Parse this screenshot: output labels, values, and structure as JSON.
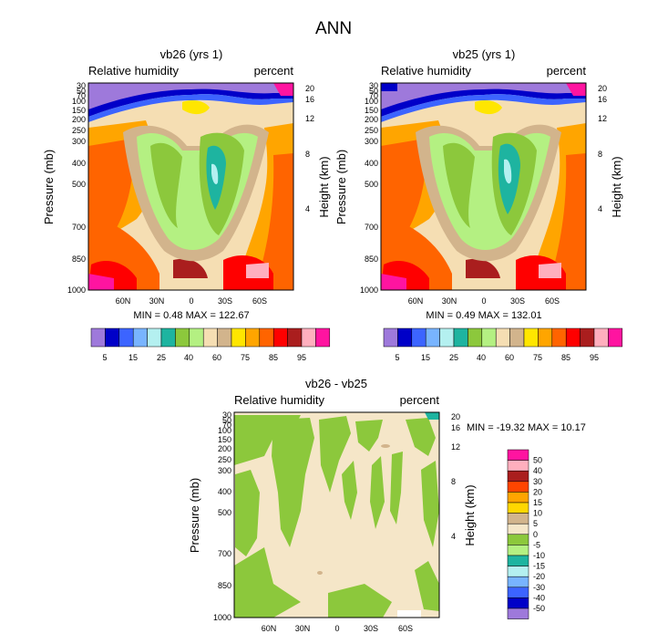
{
  "page": {
    "title": "ANN"
  },
  "chart_data": [
    {
      "type": "heatmap",
      "title": "vb26 (yrs 1)",
      "left_label": "Relative humidity",
      "right_label": "percent",
      "ylabel": "Pressure (mb)",
      "ylabel_right": "Height (km)",
      "x_ticks": [
        "60N",
        "30N",
        "0",
        "30S",
        "60S"
      ],
      "y_ticks": [
        "30",
        "50",
        "70",
        "100",
        "150",
        "200",
        "250",
        "300",
        "400",
        "500",
        "700",
        "850",
        "1000"
      ],
      "y_ticks_right": [
        "20",
        "16",
        "12",
        "8",
        "4"
      ],
      "min_max": "MIN =   0.48  MAX = 122.67",
      "colorbar_labels": [
        "5",
        "15",
        "25",
        "40",
        "60",
        "75",
        "85",
        "95"
      ],
      "colors": [
        "#9e79db",
        "#0000c8",
        "#3c64ff",
        "#78b4ff",
        "#b4f0f0",
        "#1eb4a0",
        "#8cc83c",
        "#b4f082",
        "#f5deb3",
        "#d2b48c",
        "#ffe600",
        "#ffa500",
        "#ff6400",
        "#ff0000",
        "#aa1e1e",
        "#ffafbe",
        "#ff14a0"
      ]
    },
    {
      "type": "heatmap",
      "title": "vb25 (yrs 1)",
      "left_label": "Relative humidity",
      "right_label": "percent",
      "ylabel": "Pressure (mb)",
      "ylabel_right": "Height (km)",
      "x_ticks": [
        "60N",
        "30N",
        "0",
        "30S",
        "60S"
      ],
      "y_ticks": [
        "30",
        "50",
        "70",
        "100",
        "150",
        "200",
        "250",
        "300",
        "400",
        "500",
        "700",
        "850",
        "1000"
      ],
      "y_ticks_right": [
        "20",
        "16",
        "12",
        "8",
        "4"
      ],
      "min_max": "MIN =   0.49  MAX = 132.01",
      "colorbar_labels": [
        "5",
        "15",
        "25",
        "40",
        "60",
        "75",
        "85",
        "95"
      ],
      "colors": [
        "#9e79db",
        "#0000c8",
        "#3c64ff",
        "#78b4ff",
        "#b4f0f0",
        "#1eb4a0",
        "#8cc83c",
        "#b4f082",
        "#f5deb3",
        "#d2b48c",
        "#ffe600",
        "#ffa500",
        "#ff6400",
        "#ff0000",
        "#aa1e1e",
        "#ffafbe",
        "#ff14a0"
      ]
    },
    {
      "type": "heatmap",
      "title": "vb26 - vb25",
      "left_label": "Relative humidity",
      "right_label": "percent",
      "ylabel": "Pressure (mb)",
      "ylabel_right": "Height (km)",
      "x_ticks": [
        "60N",
        "30N",
        "0",
        "30S",
        "60S"
      ],
      "y_ticks": [
        "30",
        "50",
        "70",
        "100",
        "150",
        "200",
        "250",
        "300",
        "400",
        "500",
        "700",
        "850",
        "1000"
      ],
      "y_ticks_right": [
        "20",
        "16",
        "12",
        "8",
        "4"
      ],
      "min_max": "MIN = -19.32  MAX =  10.17",
      "colorbar_labels": [
        "50",
        "40",
        "30",
        "20",
        "15",
        "10",
        "5",
        "0",
        "-5",
        "-10",
        "-15",
        "-20",
        "-30",
        "-40",
        "-50"
      ],
      "colors": [
        "#ff14a0",
        "#ffafbe",
        "#aa1e1e",
        "#ff4500",
        "#ffa500",
        "#ffd700",
        "#d2b48c",
        "#f5e6c8",
        "#8cc83c",
        "#b4f082",
        "#1eb4a0",
        "#b4f0f0",
        "#78b4ff",
        "#3c64ff",
        "#0000c8",
        "#9e79db"
      ]
    }
  ]
}
